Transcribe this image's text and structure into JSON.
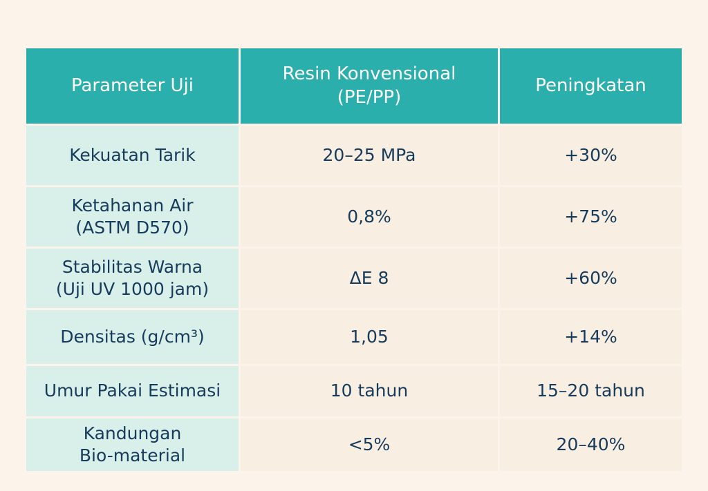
{
  "table": {
    "headers": [
      "Parameter Uji",
      "Resin Konvensional\n(PE/PP)",
      "Peningkatan"
    ],
    "rows": [
      [
        "Kekuatan Tarik",
        "20–25 MPa",
        "+30%"
      ],
      [
        "Ketahanan Air\n(ASTM D570)",
        "0,8%",
        "+75%"
      ],
      [
        "Stabilitas Warna\n(Uji UV 1000 jam)",
        "ΔE 8",
        "+60%"
      ],
      [
        "Densitas (g/cm³)",
        "1,05",
        "+14%"
      ],
      [
        "Umur Pakai Estimasi",
        "10 tahun",
        "15–20 tahun"
      ],
      [
        "Kandungan\nBio-material",
        "<5%",
        "20–40%"
      ]
    ]
  },
  "colors": {
    "header_bg": "#2aafac",
    "first_column_bg": "#d9efea",
    "body_bg": "#f8eee2",
    "text": "#173b5b",
    "page_bg": "#fcf4ea"
  }
}
